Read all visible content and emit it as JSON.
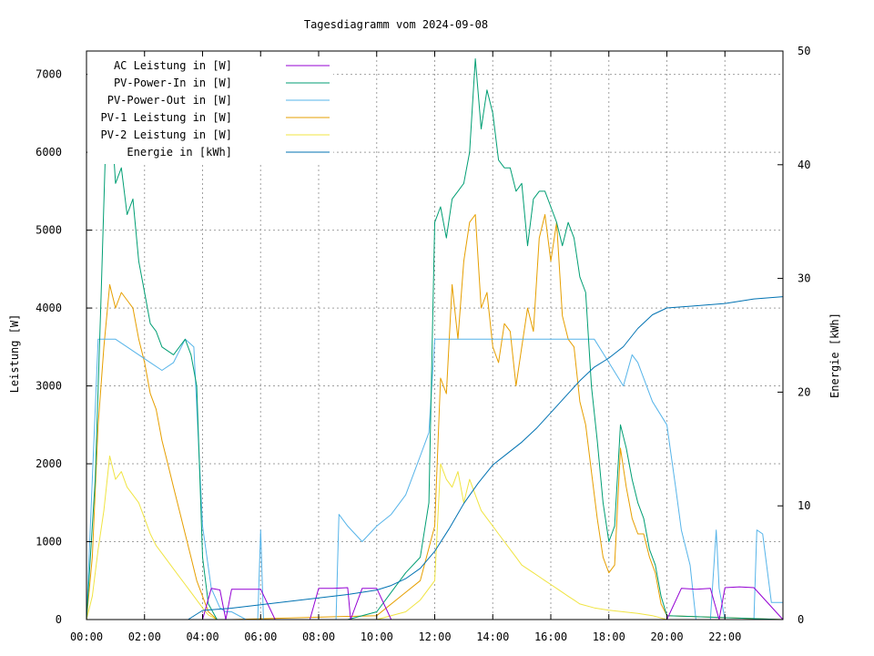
{
  "chart_data": {
    "type": "line",
    "title": "Tagesdiagramm vom 2024-09-08",
    "ylabel": "Leistung [W]",
    "y2label": "Energie [kWh]",
    "xlabel": "",
    "x_unit": "hours",
    "xlim": [
      0,
      24
    ],
    "ylim": [
      0,
      7300
    ],
    "y2lim": [
      0,
      50
    ],
    "x_ticks": [
      {
        "v": 0,
        "label": "00:00"
      },
      {
        "v": 2,
        "label": "02:00"
      },
      {
        "v": 4,
        "label": "04:00"
      },
      {
        "v": 6,
        "label": "06:00"
      },
      {
        "v": 8,
        "label": "08:00"
      },
      {
        "v": 10,
        "label": "10:00"
      },
      {
        "v": 12,
        "label": "12:00"
      },
      {
        "v": 14,
        "label": "14:00"
      },
      {
        "v": 16,
        "label": "16:00"
      },
      {
        "v": 18,
        "label": "18:00"
      },
      {
        "v": 20,
        "label": "20:00"
      },
      {
        "v": 22,
        "label": "22:00"
      }
    ],
    "y_ticks": [
      {
        "v": 0,
        "label": "0"
      },
      {
        "v": 1000,
        "label": "1000"
      },
      {
        "v": 2000,
        "label": "2000"
      },
      {
        "v": 3000,
        "label": "3000"
      },
      {
        "v": 4000,
        "label": "4000"
      },
      {
        "v": 5000,
        "label": "5000"
      },
      {
        "v": 6000,
        "label": "6000"
      },
      {
        "v": 7000,
        "label": "7000"
      }
    ],
    "y2_ticks": [
      {
        "v": 0,
        "label": "0"
      },
      {
        "v": 10,
        "label": "10"
      },
      {
        "v": 20,
        "label": "20"
      },
      {
        "v": 30,
        "label": "30"
      },
      {
        "v": 40,
        "label": "40"
      },
      {
        "v": 50,
        "label": "50"
      }
    ],
    "grid": true,
    "legend_position": "top-left",
    "series": [
      {
        "name": "AC Leistung in [W]",
        "color": "#9400d3",
        "axis": "left",
        "x": [
          0,
          4.0,
          4.3,
          4.6,
          4.8,
          5.0,
          5.5,
          6.0,
          6.5,
          7.0,
          7.5,
          7.7,
          8.0,
          8.5,
          9.0,
          9.1,
          9.5,
          10.0,
          10.5,
          11.0,
          11.5,
          19.5,
          20.0,
          20.5,
          21.0,
          21.5,
          21.8,
          22.0,
          22.5,
          23.0,
          24.0
        ],
        "values": [
          0,
          0,
          400,
          380,
          0,
          390,
          390,
          390,
          0,
          0,
          0,
          0,
          400,
          400,
          410,
          0,
          400,
          400,
          0,
          0,
          0,
          0,
          0,
          400,
          390,
          400,
          0,
          410,
          420,
          410,
          0
        ]
      },
      {
        "name": "PV-Power-In in [W]",
        "color": "#009e73",
        "axis": "left",
        "x": [
          0,
          0.3,
          0.5,
          0.7,
          0.9,
          1.0,
          1.2,
          1.4,
          1.6,
          1.8,
          2.0,
          2.2,
          2.4,
          2.6,
          3.0,
          3.4,
          3.6,
          3.8,
          4.0,
          4.2,
          4.5,
          5.0,
          6.0,
          7.0,
          8.0,
          9.0,
          10.0,
          10.5,
          11.0,
          11.5,
          11.8,
          12.0,
          12.2,
          12.4,
          12.6,
          12.8,
          13.0,
          13.2,
          13.4,
          13.6,
          13.8,
          14.0,
          14.2,
          14.4,
          14.6,
          14.8,
          15.0,
          15.2,
          15.4,
          15.6,
          15.8,
          16.0,
          16.2,
          16.4,
          16.6,
          16.8,
          17.0,
          17.2,
          17.4,
          17.6,
          17.8,
          18.0,
          18.2,
          18.4,
          18.6,
          18.8,
          19.0,
          19.2,
          19.4,
          19.6,
          19.8,
          20.0,
          24.0
        ],
        "values": [
          0,
          1800,
          4100,
          6600,
          6200,
          5600,
          5800,
          5200,
          5400,
          4600,
          4200,
          3800,
          3700,
          3500,
          3400,
          3600,
          3400,
          3000,
          800,
          200,
          0,
          0,
          0,
          0,
          0,
          0,
          100,
          350,
          600,
          800,
          1500,
          5100,
          5300,
          4900,
          5400,
          5500,
          5600,
          6000,
          7200,
          6300,
          6800,
          6500,
          5900,
          5800,
          5800,
          5500,
          5600,
          4800,
          5400,
          5500,
          5500,
          5300,
          5100,
          4800,
          5100,
          4900,
          4400,
          4200,
          3000,
          2300,
          1500,
          1000,
          1200,
          2500,
          2200,
          1800,
          1500,
          1300,
          900,
          700,
          300,
          50,
          0
        ]
      },
      {
        "name": "PV-Power-Out in [W]",
        "color": "#56b4e9",
        "axis": "left",
        "x": [
          0,
          0.2,
          0.4,
          0.6,
          0.8,
          1.0,
          1.4,
          1.8,
          2.2,
          2.6,
          3.0,
          3.4,
          3.7,
          4.0,
          4.3,
          4.6,
          4.8,
          5.0,
          5.5,
          5.9,
          6.0,
          6.1,
          6.5,
          7.0,
          7.5,
          8.0,
          8.6,
          8.7,
          9.0,
          9.5,
          10.0,
          10.5,
          11.0,
          11.5,
          11.8,
          12.0,
          12.5,
          13.0,
          13.5,
          14.0,
          14.5,
          15.0,
          15.5,
          16.0,
          16.5,
          17.0,
          17.5,
          18.0,
          18.5,
          18.8,
          19.0,
          19.5,
          20.0,
          20.3,
          20.5,
          20.8,
          21.0,
          21.5,
          21.7,
          21.8,
          22.0,
          22.5,
          23.0,
          23.1,
          23.3,
          23.6,
          24.0
        ],
        "values": [
          0,
          1800,
          3600,
          3600,
          3600,
          3600,
          3500,
          3400,
          3300,
          3200,
          3300,
          3600,
          3500,
          1200,
          400,
          150,
          100,
          100,
          0,
          0,
          1150,
          0,
          0,
          0,
          0,
          0,
          0,
          1350,
          1200,
          1000,
          1200,
          1350,
          1600,
          2100,
          2400,
          3600,
          3600,
          3600,
          3600,
          3600,
          3600,
          3600,
          3600,
          3600,
          3600,
          3600,
          3600,
          3300,
          3000,
          3400,
          3300,
          2800,
          2500,
          1700,
          1150,
          700,
          0,
          0,
          1150,
          400,
          0,
          0,
          0,
          1150,
          1100,
          220,
          220
        ]
      },
      {
        "name": "PV-1 Leistung in [W]",
        "color": "#e69f00",
        "axis": "left",
        "x": [
          0,
          0.2,
          0.4,
          0.6,
          0.8,
          1.0,
          1.2,
          1.4,
          1.6,
          1.8,
          2.0,
          2.2,
          2.4,
          2.6,
          2.8,
          3.0,
          3.2,
          3.4,
          3.6,
          3.8,
          4.0,
          4.2,
          4.5,
          5.0,
          10.0,
          11.0,
          11.5,
          12.0,
          12.2,
          12.4,
          12.6,
          12.8,
          13.0,
          13.2,
          13.4,
          13.6,
          13.8,
          14.0,
          14.2,
          14.4,
          14.6,
          14.8,
          15.0,
          15.2,
          15.4,
          15.6,
          15.8,
          16.0,
          16.2,
          16.4,
          16.6,
          16.8,
          17.0,
          17.2,
          17.4,
          17.6,
          17.8,
          18.0,
          18.2,
          18.4,
          18.6,
          18.8,
          19.0,
          19.2,
          19.4,
          19.6,
          19.8,
          20.0,
          24.0
        ],
        "values": [
          0,
          800,
          2500,
          3500,
          4300,
          4000,
          4200,
          4100,
          4000,
          3600,
          3300,
          2900,
          2700,
          2300,
          2000,
          1700,
          1400,
          1100,
          800,
          500,
          300,
          100,
          0,
          0,
          50,
          350,
          500,
          1200,
          3100,
          2900,
          4300,
          3600,
          4600,
          5100,
          5200,
          4000,
          4200,
          3500,
          3300,
          3800,
          3700,
          3000,
          3500,
          4000,
          3700,
          4900,
          5200,
          4600,
          5100,
          3900,
          3600,
          3500,
          2800,
          2500,
          1900,
          1300,
          800,
          600,
          700,
          2200,
          1700,
          1300,
          1100,
          1100,
          800,
          600,
          200,
          50,
          0
        ]
      },
      {
        "name": "PV-2 Leistung in [W]",
        "color": "#f0e442",
        "axis": "left",
        "x": [
          0,
          0.2,
          0.4,
          0.6,
          0.8,
          1.0,
          1.2,
          1.4,
          1.6,
          1.8,
          2.0,
          2.2,
          2.4,
          2.6,
          2.8,
          3.0,
          3.2,
          3.4,
          3.6,
          3.8,
          4.0,
          4.2,
          4.5,
          5.0,
          10.0,
          11.0,
          11.5,
          12.0,
          12.2,
          12.4,
          12.6,
          12.8,
          13.0,
          13.2,
          13.4,
          13.6,
          13.8,
          14.0,
          14.2,
          14.4,
          14.6,
          14.8,
          15.0,
          15.2,
          15.4,
          15.6,
          15.8,
          16.0,
          16.2,
          16.4,
          16.6,
          16.8,
          17.0,
          17.5,
          18.0,
          18.5,
          19.0,
          19.5,
          20.0,
          24.0
        ],
        "values": [
          0,
          300,
          900,
          1400,
          2100,
          1800,
          1900,
          1700,
          1600,
          1500,
          1300,
          1100,
          950,
          850,
          750,
          650,
          550,
          450,
          350,
          250,
          150,
          60,
          0,
          0,
          0,
          100,
          250,
          500,
          2000,
          1800,
          1700,
          1900,
          1500,
          1800,
          1600,
          1400,
          1300,
          1200,
          1100,
          1000,
          900,
          800,
          700,
          650,
          600,
          550,
          500,
          450,
          400,
          350,
          300,
          250,
          200,
          150,
          120,
          100,
          80,
          50,
          0,
          0
        ]
      },
      {
        "name": "Energie in [kWh]",
        "color": "#0072b2",
        "axis": "right",
        "x": [
          0,
          0.5,
          1.0,
          1.5,
          2.0,
          2.5,
          3.0,
          3.5,
          4.0,
          4.5,
          5.0,
          6.0,
          7.0,
          8.0,
          9.0,
          10.0,
          10.5,
          11.0,
          11.5,
          12.0,
          12.5,
          13.0,
          13.5,
          14.0,
          14.5,
          15.0,
          15.5,
          16.0,
          16.5,
          17.0,
          17.5,
          18.0,
          18.5,
          19.0,
          19.5,
          20.0,
          21.0,
          22.0,
          23.0,
          24.0
        ],
        "values": [
          0,
          0,
          0,
          0,
          0,
          0,
          0,
          0,
          0.8,
          0.9,
          1.0,
          1.3,
          1.6,
          1.9,
          2.2,
          2.6,
          3.0,
          3.6,
          4.5,
          6.0,
          8.0,
          10.2,
          12.0,
          13.6,
          14.6,
          15.6,
          16.8,
          18.2,
          19.6,
          21.0,
          22.2,
          23.0,
          24.0,
          25.6,
          26.8,
          27.4,
          27.6,
          27.8,
          28.2,
          28.4
        ]
      }
    ]
  }
}
